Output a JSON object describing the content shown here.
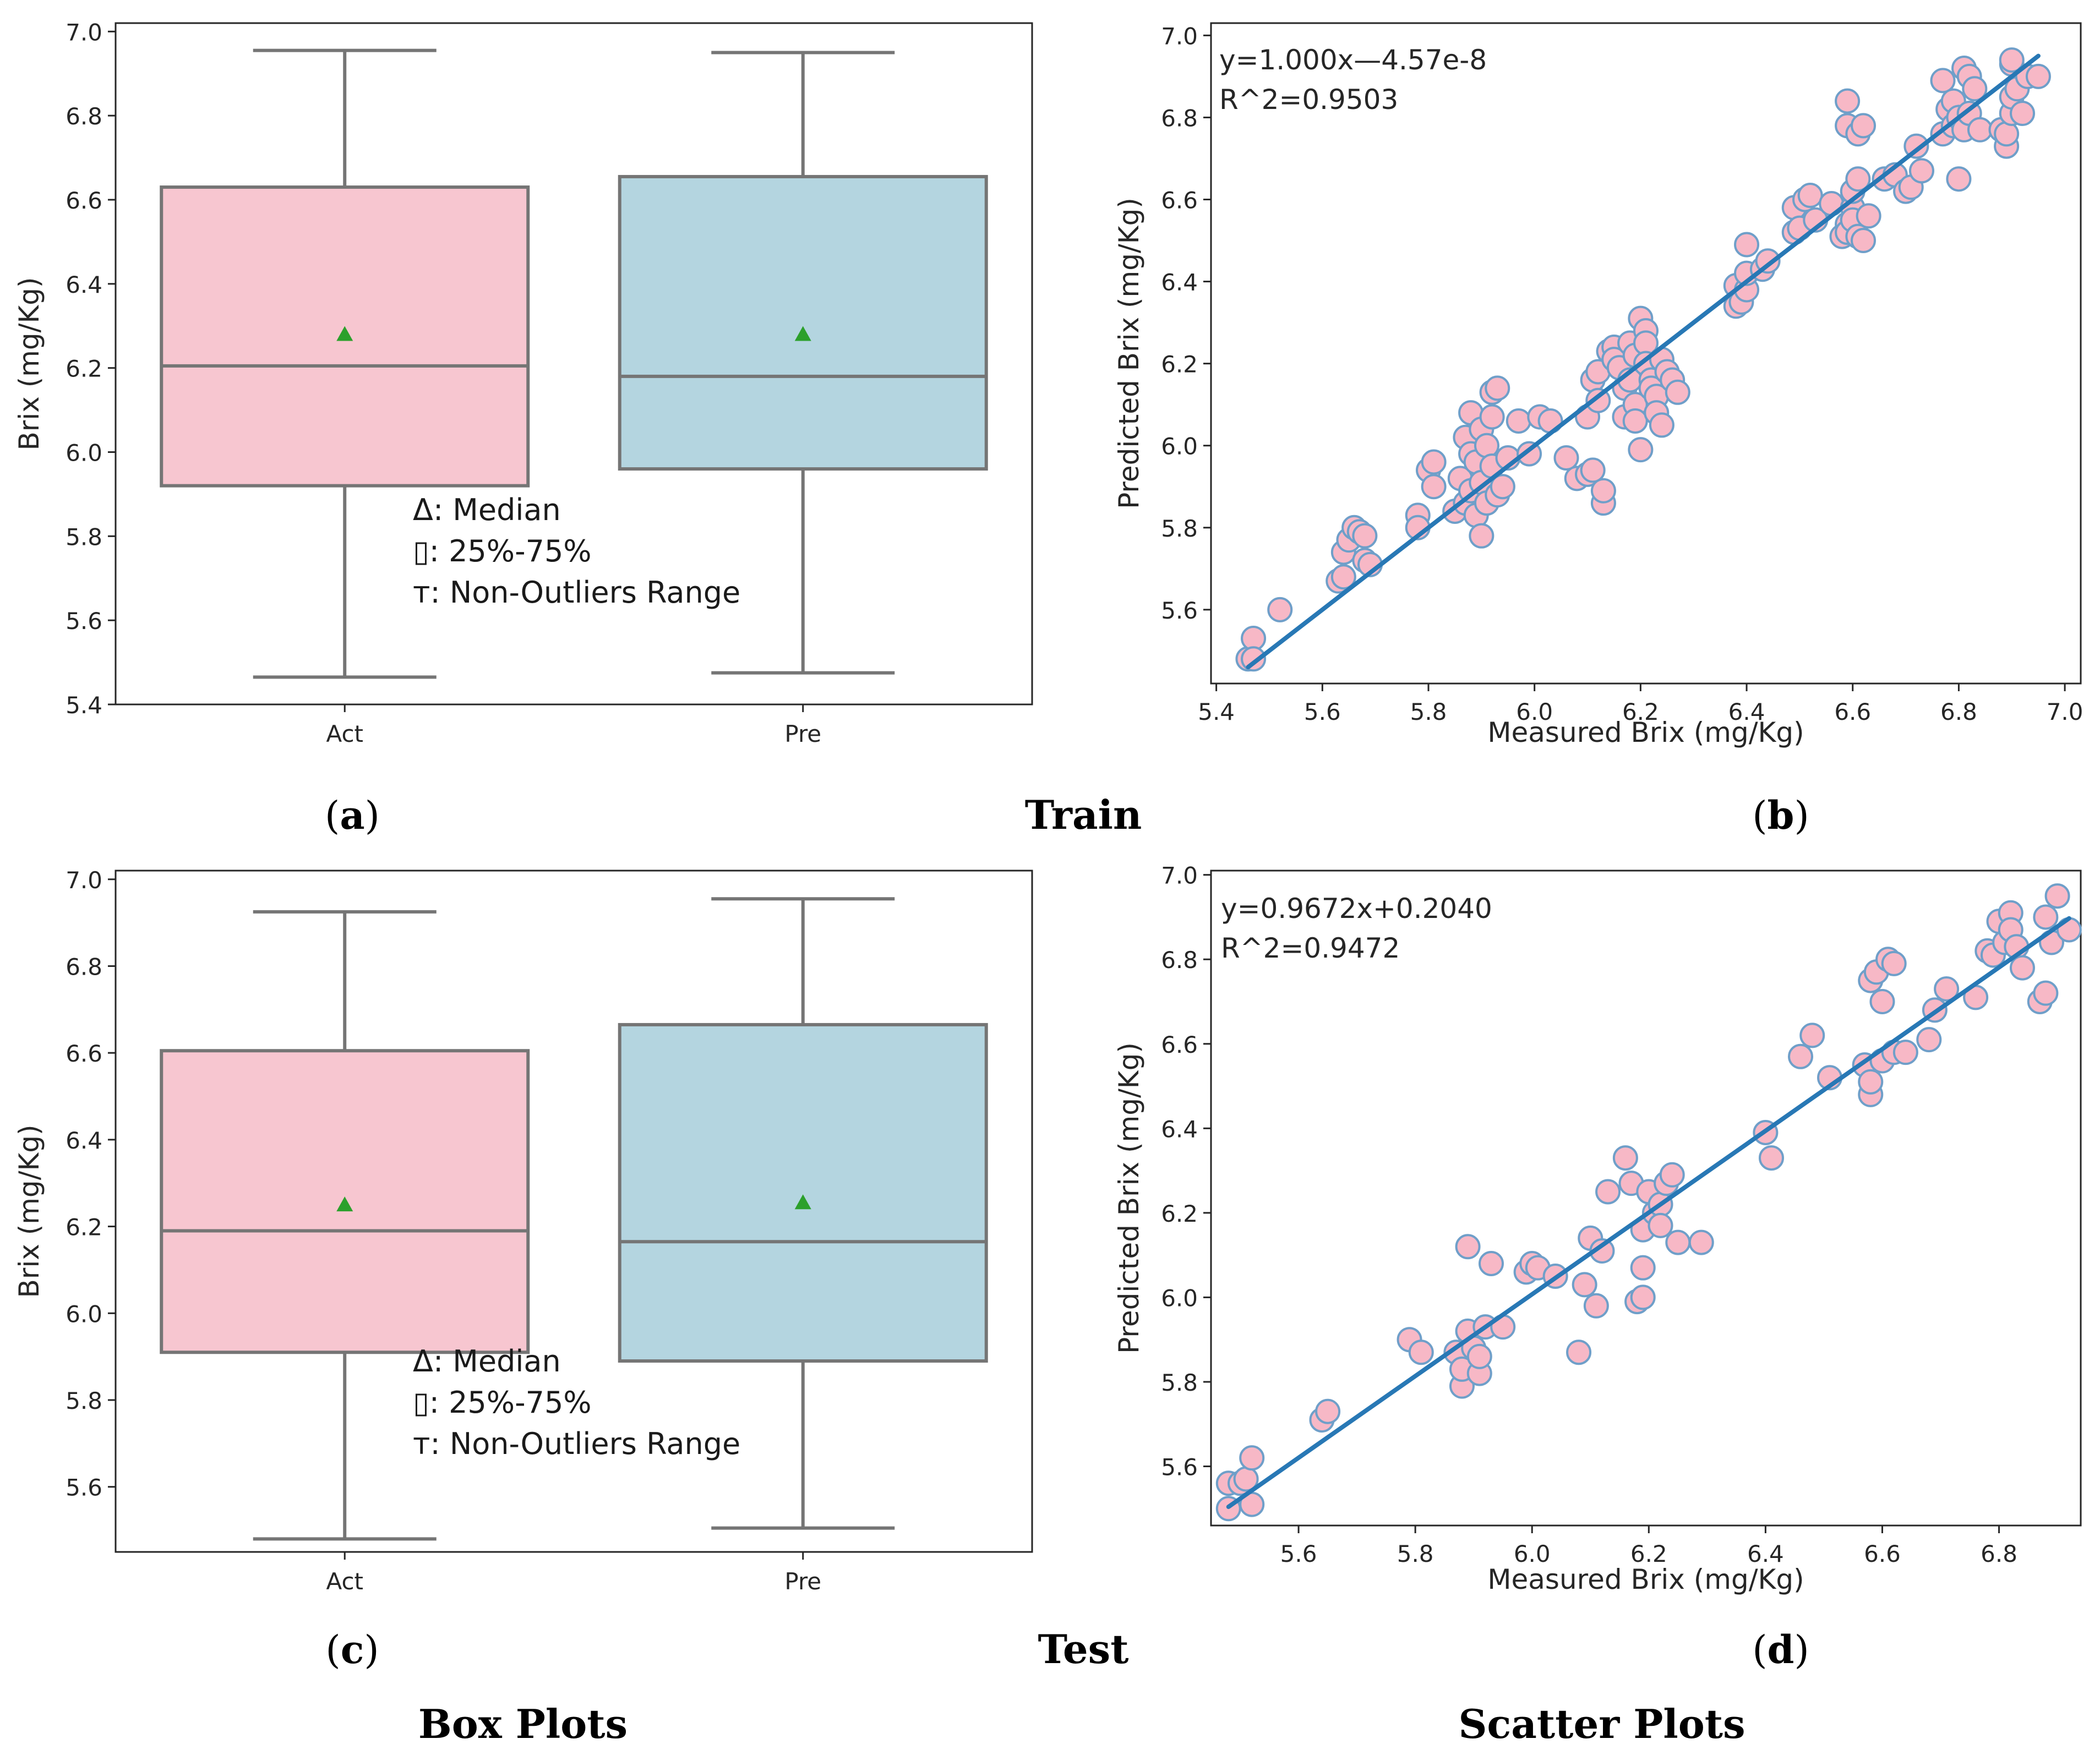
{
  "colors": {
    "act_fill": "#f7c6d0",
    "pre_fill": "#b4d5e0",
    "box_edge": "#757575",
    "mean_marker": "#2ca02c",
    "scatter_face": "#f7b8c6",
    "scatter_edge": "#6f9fc9",
    "fit_line": "#2878b5"
  },
  "labels": {
    "section_train": "Train",
    "section_test": "Test",
    "footer_box": "Box Plots",
    "footer_scatter": "Scatter Plots",
    "panel_a": "a",
    "panel_b": "b",
    "panel_c": "c",
    "panel_d": "d"
  },
  "chart_data": [
    {
      "id": "a",
      "type": "box",
      "split": "Train",
      "ylabel": "Brix (mg/Kg)",
      "xlabel": "",
      "ylim": [
        5.4,
        7.02
      ],
      "yticks": [
        5.4,
        5.6,
        5.8,
        6.0,
        6.2,
        6.4,
        6.6,
        6.8,
        7.0
      ],
      "categories": [
        "Act",
        "Pre"
      ],
      "boxes": [
        {
          "name": "Act",
          "whisker_low": 5.465,
          "q1": 5.92,
          "median": 6.205,
          "q3": 6.63,
          "whisker_high": 6.955,
          "mean": 6.28
        },
        {
          "name": "Pre",
          "whisker_low": 5.475,
          "q1": 5.96,
          "median": 6.18,
          "q3": 6.655,
          "whisker_high": 6.95,
          "mean": 6.28
        }
      ],
      "legend": [
        "Δ: Median",
        "▯: 25%-75%",
        "т: Non-Outliers Range"
      ]
    },
    {
      "id": "b",
      "type": "scatter",
      "split": "Train",
      "xlabel": "Measured Brix (mg/Kg)",
      "ylabel": "Predicted Brix (mg/Kg)",
      "xlim": [
        5.39,
        7.03
      ],
      "ylim": [
        5.42,
        7.03
      ],
      "xticks": [
        5.4,
        5.6,
        5.8,
        6.0,
        6.2,
        6.4,
        6.6,
        6.8,
        7.0
      ],
      "yticks": [
        5.6,
        5.8,
        6.0,
        6.2,
        6.4,
        6.6,
        6.8,
        7.0
      ],
      "fit": {
        "slope": 1.0,
        "intercept": 0.0,
        "x_range": [
          5.46,
          6.95
        ]
      },
      "annotations": [
        "y=1.000x—4.57e-8",
        "R^2=0.9503"
      ],
      "points": [
        [
          5.46,
          5.48
        ],
        [
          5.47,
          5.53
        ],
        [
          5.47,
          5.48
        ],
        [
          5.52,
          5.6
        ],
        [
          5.63,
          5.67
        ],
        [
          5.64,
          5.68
        ],
        [
          5.64,
          5.74
        ],
        [
          5.65,
          5.77
        ],
        [
          5.66,
          5.8
        ],
        [
          5.67,
          5.79
        ],
        [
          5.68,
          5.78
        ],
        [
          5.68,
          5.72
        ],
        [
          5.69,
          5.71
        ],
        [
          5.78,
          5.83
        ],
        [
          5.78,
          5.8
        ],
        [
          5.8,
          5.94
        ],
        [
          5.81,
          5.9
        ],
        [
          5.81,
          5.96
        ],
        [
          5.85,
          5.84
        ],
        [
          5.86,
          5.92
        ],
        [
          5.87,
          5.86
        ],
        [
          5.87,
          6.02
        ],
        [
          5.88,
          6.08
        ],
        [
          5.88,
          5.98
        ],
        [
          5.88,
          5.89
        ],
        [
          5.89,
          5.96
        ],
        [
          5.89,
          5.83
        ],
        [
          5.9,
          5.78
        ],
        [
          5.9,
          5.91
        ],
        [
          5.9,
          6.04
        ],
        [
          5.91,
          6.0
        ],
        [
          5.91,
          5.86
        ],
        [
          5.92,
          6.13
        ],
        [
          5.92,
          6.07
        ],
        [
          5.92,
          5.95
        ],
        [
          5.93,
          6.14
        ],
        [
          5.93,
          5.88
        ],
        [
          5.94,
          5.9
        ],
        [
          5.95,
          5.97
        ],
        [
          5.97,
          6.06
        ],
        [
          5.99,
          5.98
        ],
        [
          6.01,
          6.07
        ],
        [
          6.03,
          6.06
        ],
        [
          6.06,
          5.97
        ],
        [
          6.08,
          5.92
        ],
        [
          6.1,
          5.93
        ],
        [
          6.1,
          6.07
        ],
        [
          6.11,
          5.94
        ],
        [
          6.11,
          6.16
        ],
        [
          6.12,
          6.18
        ],
        [
          6.12,
          6.11
        ],
        [
          6.13,
          5.86
        ],
        [
          6.13,
          5.89
        ],
        [
          6.14,
          6.23
        ],
        [
          6.15,
          6.24
        ],
        [
          6.15,
          6.21
        ],
        [
          6.16,
          6.19
        ],
        [
          6.17,
          6.07
        ],
        [
          6.17,
          6.14
        ],
        [
          6.18,
          6.25
        ],
        [
          6.18,
          6.16
        ],
        [
          6.19,
          6.22
        ],
        [
          6.19,
          6.1
        ],
        [
          6.19,
          6.06
        ],
        [
          6.2,
          5.99
        ],
        [
          6.2,
          6.31
        ],
        [
          6.21,
          6.28
        ],
        [
          6.21,
          6.25
        ],
        [
          6.21,
          6.2
        ],
        [
          6.22,
          6.16
        ],
        [
          6.22,
          6.14
        ],
        [
          6.23,
          6.12
        ],
        [
          6.23,
          6.08
        ],
        [
          6.24,
          6.05
        ],
        [
          6.24,
          6.21
        ],
        [
          6.25,
          6.18
        ],
        [
          6.26,
          6.16
        ],
        [
          6.27,
          6.13
        ],
        [
          6.38,
          6.39
        ],
        [
          6.38,
          6.34
        ],
        [
          6.39,
          6.35
        ],
        [
          6.4,
          6.38
        ],
        [
          6.4,
          6.42
        ],
        [
          6.4,
          6.49
        ],
        [
          6.43,
          6.43
        ],
        [
          6.44,
          6.45
        ],
        [
          6.49,
          6.52
        ],
        [
          6.49,
          6.58
        ],
        [
          6.5,
          6.53
        ],
        [
          6.51,
          6.6
        ],
        [
          6.52,
          6.61
        ],
        [
          6.53,
          6.55
        ],
        [
          6.56,
          6.59
        ],
        [
          6.58,
          6.51
        ],
        [
          6.59,
          6.54
        ],
        [
          6.59,
          6.52
        ],
        [
          6.6,
          6.58
        ],
        [
          6.6,
          6.55
        ],
        [
          6.6,
          6.62
        ],
        [
          6.61,
          6.65
        ],
        [
          6.61,
          6.51
        ],
        [
          6.62,
          6.5
        ],
        [
          6.63,
          6.56
        ],
        [
          6.59,
          6.78
        ],
        [
          6.59,
          6.84
        ],
        [
          6.61,
          6.76
        ],
        [
          6.62,
          6.78
        ],
        [
          6.66,
          6.65
        ],
        [
          6.68,
          6.66
        ],
        [
          6.7,
          6.62
        ],
        [
          6.71,
          6.63
        ],
        [
          6.72,
          6.73
        ],
        [
          6.73,
          6.67
        ],
        [
          6.77,
          6.76
        ],
        [
          6.77,
          6.89
        ],
        [
          6.78,
          6.82
        ],
        [
          6.79,
          6.78
        ],
        [
          6.79,
          6.84
        ],
        [
          6.8,
          6.65
        ],
        [
          6.8,
          6.8
        ],
        [
          6.81,
          6.92
        ],
        [
          6.81,
          6.77
        ],
        [
          6.82,
          6.9
        ],
        [
          6.82,
          6.81
        ],
        [
          6.83,
          6.87
        ],
        [
          6.84,
          6.77
        ],
        [
          6.88,
          6.77
        ],
        [
          6.89,
          6.73
        ],
        [
          6.89,
          6.76
        ],
        [
          6.9,
          6.81
        ],
        [
          6.9,
          6.85
        ],
        [
          6.9,
          6.93
        ],
        [
          6.9,
          6.94
        ],
        [
          6.91,
          6.87
        ],
        [
          6.92,
          6.81
        ],
        [
          6.93,
          6.9
        ],
        [
          6.95,
          6.9
        ]
      ]
    },
    {
      "id": "c",
      "type": "box",
      "split": "Test",
      "ylabel": "Brix (mg/Kg)",
      "xlabel": "",
      "ylim": [
        5.45,
        7.02
      ],
      "yticks": [
        5.6,
        5.8,
        6.0,
        6.2,
        6.4,
        6.6,
        6.8,
        7.0
      ],
      "categories": [
        "Act",
        "Pre"
      ],
      "boxes": [
        {
          "name": "Act",
          "whisker_low": 5.48,
          "q1": 5.91,
          "median": 6.19,
          "q3": 6.605,
          "whisker_high": 6.925,
          "mean": 6.25
        },
        {
          "name": "Pre",
          "whisker_low": 5.505,
          "q1": 5.89,
          "median": 6.165,
          "q3": 6.665,
          "whisker_high": 6.955,
          "mean": 6.255
        }
      ],
      "legend": [
        "Δ: Median",
        "▯: 25%-75%",
        "т: Non-Outliers Range"
      ]
    },
    {
      "id": "d",
      "type": "scatter",
      "split": "Test",
      "xlabel": "Measured Brix (mg/Kg)",
      "ylabel": "Predicted Brix (mg/Kg)",
      "xlim": [
        5.45,
        6.94
      ],
      "ylim": [
        5.46,
        7.01
      ],
      "xticks": [
        5.6,
        5.8,
        6.0,
        6.2,
        6.4,
        6.6,
        6.8
      ],
      "yticks": [
        5.6,
        5.8,
        6.0,
        6.2,
        6.4,
        6.6,
        6.8,
        7.0
      ],
      "fit": {
        "slope": 0.9672,
        "intercept": 0.204,
        "x_range": [
          5.48,
          6.92
        ]
      },
      "annotations": [
        "y=0.9672x+0.2040",
        "R^2=0.9472"
      ],
      "points": [
        [
          5.48,
          5.5
        ],
        [
          5.48,
          5.56
        ],
        [
          5.5,
          5.56
        ],
        [
          5.51,
          5.57
        ],
        [
          5.52,
          5.51
        ],
        [
          5.52,
          5.62
        ],
        [
          5.64,
          5.71
        ],
        [
          5.65,
          5.73
        ],
        [
          5.79,
          5.9
        ],
        [
          5.81,
          5.87
        ],
        [
          5.87,
          5.87
        ],
        [
          5.88,
          5.79
        ],
        [
          5.88,
          5.83
        ],
        [
          5.89,
          5.92
        ],
        [
          5.89,
          6.12
        ],
        [
          5.9,
          5.88
        ],
        [
          5.91,
          5.82
        ],
        [
          5.91,
          5.86
        ],
        [
          5.92,
          5.93
        ],
        [
          5.93,
          6.08
        ],
        [
          5.95,
          5.93
        ],
        [
          5.99,
          6.06
        ],
        [
          6.0,
          6.08
        ],
        [
          6.01,
          6.07
        ],
        [
          6.04,
          6.05
        ],
        [
          6.08,
          5.87
        ],
        [
          6.09,
          6.03
        ],
        [
          6.1,
          6.14
        ],
        [
          6.11,
          5.98
        ],
        [
          6.12,
          6.11
        ],
        [
          6.13,
          6.25
        ],
        [
          6.16,
          6.33
        ],
        [
          6.17,
          6.27
        ],
        [
          6.18,
          5.99
        ],
        [
          6.19,
          6.0
        ],
        [
          6.19,
          6.07
        ],
        [
          6.19,
          6.16
        ],
        [
          6.2,
          6.25
        ],
        [
          6.21,
          6.2
        ],
        [
          6.22,
          6.22
        ],
        [
          6.22,
          6.17
        ],
        [
          6.23,
          6.27
        ],
        [
          6.24,
          6.29
        ],
        [
          6.25,
          6.13
        ],
        [
          6.29,
          6.13
        ],
        [
          6.4,
          6.39
        ],
        [
          6.41,
          6.33
        ],
        [
          6.46,
          6.57
        ],
        [
          6.48,
          6.62
        ],
        [
          6.51,
          6.52
        ],
        [
          6.57,
          6.55
        ],
        [
          6.58,
          6.75
        ],
        [
          6.58,
          6.48
        ],
        [
          6.58,
          6.51
        ],
        [
          6.59,
          6.77
        ],
        [
          6.6,
          6.56
        ],
        [
          6.6,
          6.7
        ],
        [
          6.61,
          6.8
        ],
        [
          6.62,
          6.79
        ],
        [
          6.62,
          6.58
        ],
        [
          6.64,
          6.58
        ],
        [
          6.68,
          6.61
        ],
        [
          6.69,
          6.68
        ],
        [
          6.71,
          6.73
        ],
        [
          6.76,
          6.71
        ],
        [
          6.78,
          6.82
        ],
        [
          6.79,
          6.81
        ],
        [
          6.8,
          6.89
        ],
        [
          6.81,
          6.84
        ],
        [
          6.82,
          6.91
        ],
        [
          6.82,
          6.87
        ],
        [
          6.83,
          6.83
        ],
        [
          6.84,
          6.78
        ],
        [
          6.87,
          6.7
        ],
        [
          6.88,
          6.9
        ],
        [
          6.88,
          6.72
        ],
        [
          6.89,
          6.84
        ],
        [
          6.9,
          6.95
        ],
        [
          6.92,
          6.87
        ]
      ]
    }
  ]
}
